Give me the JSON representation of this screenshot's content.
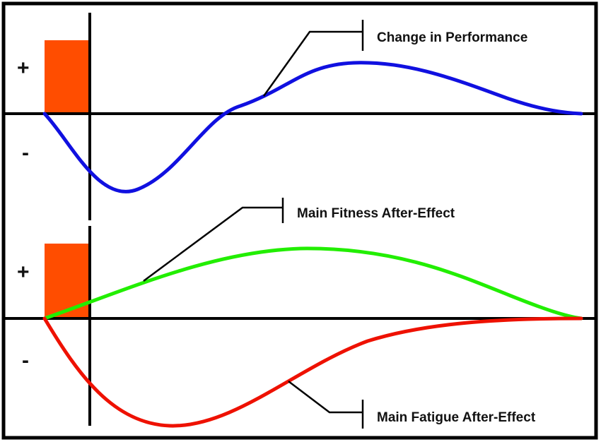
{
  "panels": {
    "top": {
      "plus": "+",
      "minus": "-",
      "curve_label": "Change in Performance",
      "curve_color": "#1010e0"
    },
    "bottom": {
      "plus": "+",
      "minus": "-",
      "fitness_label": "Main Fitness After-Effect",
      "fitness_color": "#22ee00",
      "fatigue_label": "Main Fatigue After-Effect",
      "fatigue_color": "#ee1100"
    }
  },
  "colors": {
    "stimulus_bar": "#ff4d00",
    "axis": "#000000",
    "frame_border": "#000000"
  }
}
